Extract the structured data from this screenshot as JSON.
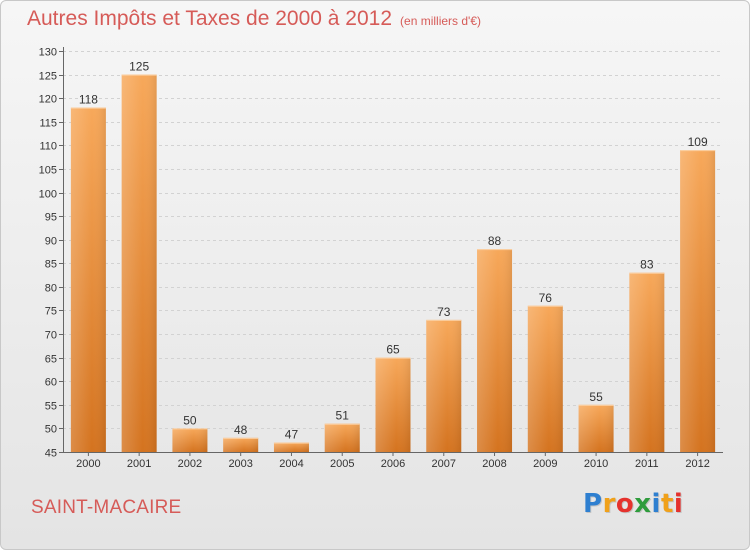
{
  "header": {
    "title": "Autres Impôts et Taxes de 2000 à 2012",
    "subtitle": "(en milliers d'€)"
  },
  "footer": {
    "town": "SAINT-MACAIRE",
    "logo_letters": [
      "P",
      "r",
      "o",
      "x",
      "i",
      "t",
      "i"
    ],
    "logo_colors": [
      "#2e7fd0",
      "#f0a11a",
      "#e5322d",
      "#2e9c3c",
      "#2e7fd0",
      "#f0a11a",
      "#e5322d"
    ]
  },
  "chart_data": {
    "type": "bar",
    "title": "Autres Impôts et Taxes de 2000 à 2012",
    "categories": [
      "2000",
      "2001",
      "2002",
      "2003",
      "2004",
      "2005",
      "2006",
      "2007",
      "2008",
      "2009",
      "2010",
      "2011",
      "2012"
    ],
    "values": [
      118,
      125,
      50,
      48,
      47,
      51,
      65,
      73,
      88,
      76,
      55,
      83,
      109
    ],
    "ylim": [
      45,
      130
    ],
    "yticks": [
      45,
      50,
      55,
      60,
      65,
      70,
      75,
      80,
      85,
      90,
      95,
      100,
      105,
      110,
      115,
      120,
      125,
      130
    ],
    "grid": true,
    "bar_color_light": "#f7a85a",
    "bar_color_dark": "#d4731f"
  }
}
